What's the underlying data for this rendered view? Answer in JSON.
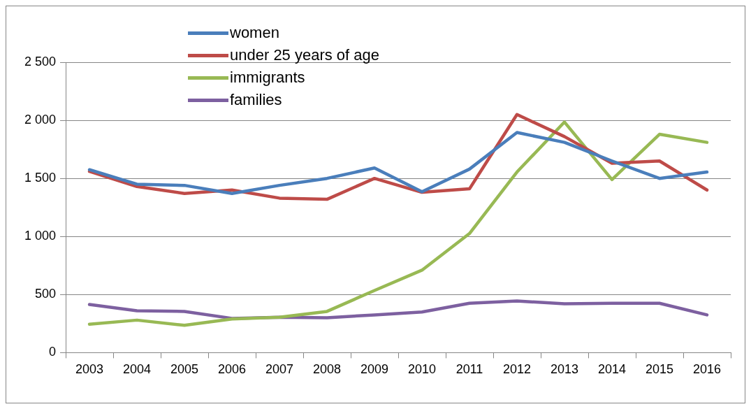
{
  "chart_data": {
    "type": "line",
    "categories": [
      "2003",
      "2004",
      "2005",
      "2006",
      "2007",
      "2008",
      "2009",
      "2010",
      "2011",
      "2012",
      "2013",
      "2014",
      "2015",
      "2016"
    ],
    "series": [
      {
        "name": "women",
        "color": "#4a7ebb",
        "values": [
          1575,
          1450,
          1440,
          1370,
          1440,
          1500,
          1590,
          1385,
          1580,
          1895,
          1810,
          1650,
          1500,
          1555
        ]
      },
      {
        "name": "under 25 years of age",
        "color": "#be4b48",
        "values": [
          1560,
          1430,
          1370,
          1400,
          1330,
          1320,
          1500,
          1380,
          1410,
          2050,
          1860,
          1630,
          1650,
          1400
        ]
      },
      {
        "name": "immigrants",
        "color": "#98b954",
        "values": [
          245,
          280,
          235,
          290,
          305,
          355,
          535,
          710,
          1025,
          1555,
          1985,
          1490,
          1880,
          1810
        ]
      },
      {
        "name": "families",
        "color": "#7d60a0",
        "values": [
          415,
          360,
          355,
          295,
          305,
          300,
          325,
          350,
          425,
          445,
          420,
          425,
          425,
          325
        ]
      }
    ],
    "ylim": [
      0,
      2500
    ],
    "yticks": [
      0,
      500,
      {
        "value": 1000,
        "label": "1 000"
      },
      {
        "value": 1500,
        "label": "1 500"
      },
      {
        "value": 2000,
        "label": "2 000"
      },
      {
        "value": 2500,
        "label": "2 500"
      }
    ],
    "grid": "y",
    "legend": "top",
    "marker": "none",
    "line_style": "solid"
  }
}
